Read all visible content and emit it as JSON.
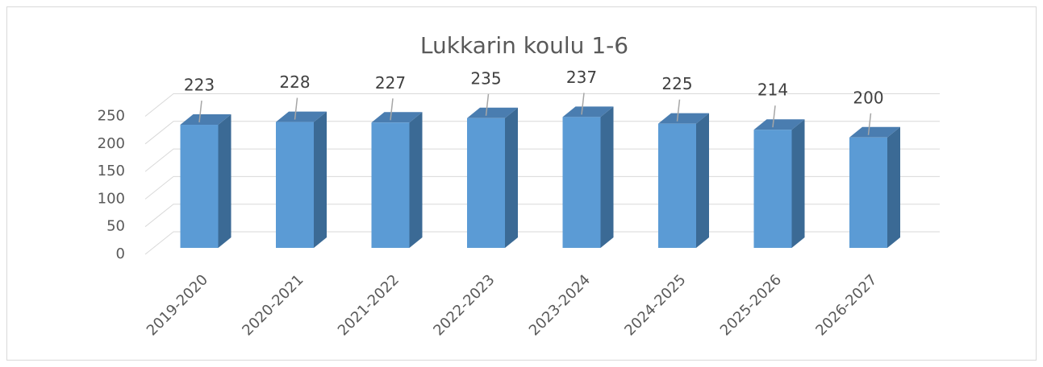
{
  "chart_data": {
    "type": "bar3d",
    "title": "Lukkarin koulu 1-6",
    "categories": [
      "2019-2020",
      "2020-2021",
      "2021-2022",
      "2022-2023",
      "2023-2024",
      "2024-2025",
      "2025-2026",
      "2026-2027"
    ],
    "values": [
      223,
      228,
      227,
      235,
      237,
      225,
      214,
      200
    ],
    "color": "#5b9bd5",
    "ylim": [
      0,
      250
    ],
    "yticks": [
      0,
      50,
      100,
      150,
      200,
      250
    ],
    "grid": true
  }
}
